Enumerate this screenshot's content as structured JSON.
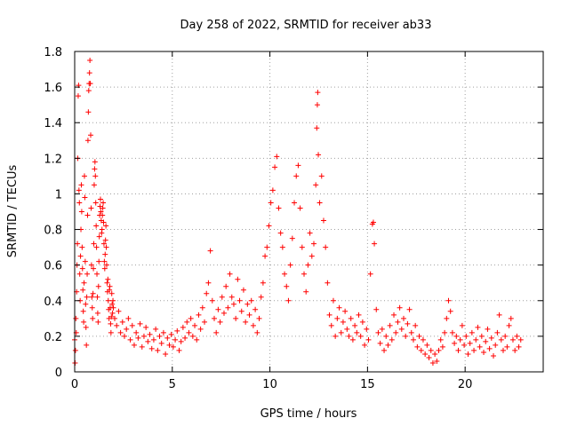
{
  "chart_data": {
    "type": "scatter",
    "title": "Day 258 of 2022, SRMTID for receiver ab33",
    "xlabel": "GPS time / hours",
    "ylabel": "SRMTID / TECUs",
    "xlim": [
      0,
      24
    ],
    "ylim": [
      0,
      1.8
    ],
    "xticks": [
      0,
      5,
      10,
      15,
      20
    ],
    "xtick_labels": [
      "0",
      "5",
      "10",
      "15",
      "20"
    ],
    "yticks": [
      0,
      0.2,
      0.4,
      0.6,
      0.8,
      1,
      1.2,
      1.4,
      1.6,
      1.8
    ],
    "ytick_labels": [
      "0",
      "0.2",
      "0.4",
      "0.6",
      "0.8",
      "1",
      "1.2",
      "1.4",
      "1.6",
      "1.8"
    ],
    "grid": true,
    "marker": "+",
    "color": "#ff0000",
    "series": [
      {
        "name": "SRMTID",
        "points": [
          [
            0.0,
            0.18
          ],
          [
            0.02,
            0.05
          ],
          [
            0.04,
            0.12
          ],
          [
            0.06,
            0.3
          ],
          [
            0.08,
            0.22
          ],
          [
            0.1,
            0.45
          ],
          [
            0.12,
            0.6
          ],
          [
            0.14,
            0.72
          ],
          [
            0.16,
            1.2
          ],
          [
            0.18,
            1.55
          ],
          [
            0.2,
            1.61
          ],
          [
            0.22,
            1.02
          ],
          [
            0.24,
            0.95
          ],
          [
            0.26,
            0.55
          ],
          [
            0.28,
            0.4
          ],
          [
            0.3,
            0.65
          ],
          [
            0.32,
            0.8
          ],
          [
            0.34,
            1.05
          ],
          [
            0.36,
            0.9
          ],
          [
            0.38,
            0.7
          ],
          [
            0.4,
            0.58
          ],
          [
            0.42,
            0.46
          ],
          [
            0.44,
            0.34
          ],
          [
            0.46,
            0.28
          ],
          [
            0.48,
            0.5
          ],
          [
            0.5,
            1.1
          ],
          [
            0.52,
            0.98
          ],
          [
            0.54,
            0.62
          ],
          [
            0.56,
            0.38
          ],
          [
            0.58,
            0.25
          ],
          [
            0.6,
            0.15
          ],
          [
            0.62,
            0.42
          ],
          [
            0.64,
            0.55
          ],
          [
            0.66,
            0.88
          ],
          [
            0.68,
            1.3
          ],
          [
            0.7,
            1.46
          ],
          [
            0.72,
            1.58
          ],
          [
            0.74,
            1.62
          ],
          [
            0.76,
            1.68
          ],
          [
            0.78,
            1.75
          ],
          [
            0.8,
            1.62
          ],
          [
            0.82,
            1.33
          ],
          [
            0.84,
            0.92
          ],
          [
            0.86,
            0.6
          ],
          [
            0.88,
            0.42
          ],
          [
            0.9,
            0.36
          ],
          [
            0.92,
            0.3
          ],
          [
            0.94,
            0.44
          ],
          [
            0.96,
            0.58
          ],
          [
            0.98,
            0.72
          ],
          [
            1.0,
            1.05
          ],
          [
            1.02,
            1.14
          ],
          [
            1.04,
            1.18
          ],
          [
            1.06,
            1.1
          ],
          [
            1.08,
            0.95
          ],
          [
            1.1,
            0.82
          ],
          [
            1.12,
            0.7
          ],
          [
            1.14,
            0.55
          ],
          [
            1.16,
            0.42
          ],
          [
            1.18,
            0.33
          ],
          [
            1.2,
            0.28
          ],
          [
            1.22,
            0.48
          ],
          [
            1.24,
            0.62
          ],
          [
            1.26,
            0.76
          ],
          [
            1.28,
            0.88
          ],
          [
            1.3,
            0.93
          ],
          [
            1.32,
            0.97
          ],
          [
            1.34,
            0.9
          ],
          [
            1.36,
            0.85
          ],
          [
            1.38,
            0.78
          ],
          [
            1.4,
            0.8
          ],
          [
            1.42,
            0.88
          ],
          [
            1.44,
            0.92
          ],
          [
            1.46,
            0.95
          ],
          [
            1.48,
            0.84
          ],
          [
            1.5,
            0.72
          ],
          [
            1.52,
            0.62
          ],
          [
            1.54,
            0.58
          ],
          [
            1.56,
            0.66
          ],
          [
            1.58,
            0.74
          ],
          [
            1.6,
            0.82
          ],
          [
            1.62,
            0.7
          ],
          [
            1.64,
            0.6
          ],
          [
            1.66,
            0.5
          ],
          [
            1.68,
            0.45
          ],
          [
            1.7,
            0.52
          ],
          [
            1.72,
            0.4
          ],
          [
            1.74,
            0.35
          ],
          [
            1.76,
            0.3
          ],
          [
            1.78,
            0.46
          ],
          [
            1.8,
            0.48
          ],
          [
            1.82,
            0.36
          ],
          [
            1.84,
            0.27
          ],
          [
            1.86,
            0.22
          ],
          [
            1.88,
            0.31
          ],
          [
            1.9,
            0.44
          ],
          [
            1.92,
            0.38
          ],
          [
            1.94,
            0.33
          ],
          [
            1.96,
            0.4
          ],
          [
            1.98,
            0.36
          ],
          [
            2.05,
            0.3
          ],
          [
            2.15,
            0.26
          ],
          [
            2.25,
            0.34
          ],
          [
            2.35,
            0.22
          ],
          [
            2.45,
            0.28
          ],
          [
            2.55,
            0.2
          ],
          [
            2.65,
            0.24
          ],
          [
            2.75,
            0.3
          ],
          [
            2.85,
            0.18
          ],
          [
            2.95,
            0.26
          ],
          [
            3.05,
            0.15
          ],
          [
            3.15,
            0.22
          ],
          [
            3.25,
            0.19
          ],
          [
            3.35,
            0.27
          ],
          [
            3.45,
            0.14
          ],
          [
            3.55,
            0.2
          ],
          [
            3.65,
            0.25
          ],
          [
            3.75,
            0.17
          ],
          [
            3.85,
            0.21
          ],
          [
            3.95,
            0.13
          ],
          [
            4.05,
            0.18
          ],
          [
            4.15,
            0.24
          ],
          [
            4.25,
            0.12
          ],
          [
            4.35,
            0.2
          ],
          [
            4.45,
            0.16
          ],
          [
            4.55,
            0.22
          ],
          [
            4.65,
            0.1
          ],
          [
            4.75,
            0.19
          ],
          [
            4.85,
            0.15
          ],
          [
            4.95,
            0.21
          ],
          [
            5.05,
            0.14
          ],
          [
            5.15,
            0.18
          ],
          [
            5.25,
            0.23
          ],
          [
            5.35,
            0.12
          ],
          [
            5.45,
            0.17
          ],
          [
            5.55,
            0.25
          ],
          [
            5.65,
            0.19
          ],
          [
            5.75,
            0.28
          ],
          [
            5.85,
            0.22
          ],
          [
            5.95,
            0.3
          ],
          [
            6.05,
            0.2
          ],
          [
            6.15,
            0.26
          ],
          [
            6.25,
            0.18
          ],
          [
            6.35,
            0.32
          ],
          [
            6.45,
            0.24
          ],
          [
            6.55,
            0.36
          ],
          [
            6.65,
            0.28
          ],
          [
            6.75,
            0.44
          ],
          [
            6.85,
            0.5
          ],
          [
            6.95,
            0.68
          ],
          [
            7.05,
            0.4
          ],
          [
            7.15,
            0.3
          ],
          [
            7.25,
            0.22
          ],
          [
            7.35,
            0.35
          ],
          [
            7.45,
            0.28
          ],
          [
            7.55,
            0.42
          ],
          [
            7.65,
            0.33
          ],
          [
            7.75,
            0.48
          ],
          [
            7.85,
            0.36
          ],
          [
            7.95,
            0.55
          ],
          [
            8.05,
            0.42
          ],
          [
            8.15,
            0.38
          ],
          [
            8.25,
            0.3
          ],
          [
            8.35,
            0.52
          ],
          [
            8.45,
            0.4
          ],
          [
            8.55,
            0.34
          ],
          [
            8.65,
            0.46
          ],
          [
            8.75,
            0.28
          ],
          [
            8.85,
            0.38
          ],
          [
            8.95,
            0.32
          ],
          [
            9.05,
            0.4
          ],
          [
            9.15,
            0.26
          ],
          [
            9.25,
            0.35
          ],
          [
            9.35,
            0.22
          ],
          [
            9.45,
            0.3
          ],
          [
            9.55,
            0.42
          ],
          [
            9.65,
            0.5
          ],
          [
            9.75,
            0.65
          ],
          [
            9.85,
            0.7
          ],
          [
            9.95,
            0.82
          ],
          [
            10.05,
            0.95
          ],
          [
            10.15,
            1.02
          ],
          [
            10.25,
            1.15
          ],
          [
            10.35,
            1.21
          ],
          [
            10.45,
            0.92
          ],
          [
            10.55,
            0.78
          ],
          [
            10.65,
            0.7
          ],
          [
            10.75,
            0.55
          ],
          [
            10.85,
            0.48
          ],
          [
            10.95,
            0.4
          ],
          [
            11.05,
            0.6
          ],
          [
            11.15,
            0.75
          ],
          [
            11.25,
            0.95
          ],
          [
            11.35,
            1.1
          ],
          [
            11.45,
            1.16
          ],
          [
            11.55,
            0.92
          ],
          [
            11.65,
            0.7
          ],
          [
            11.75,
            0.55
          ],
          [
            11.85,
            0.45
          ],
          [
            11.95,
            0.6
          ],
          [
            12.05,
            0.78
          ],
          [
            12.15,
            0.65
          ],
          [
            12.25,
            0.72
          ],
          [
            12.35,
            1.05
          ],
          [
            12.4,
            1.37
          ],
          [
            12.43,
            1.5
          ],
          [
            12.45,
            1.57
          ],
          [
            12.48,
            1.22
          ],
          [
            12.55,
            0.95
          ],
          [
            12.65,
            1.1
          ],
          [
            12.75,
            0.85
          ],
          [
            12.85,
            0.7
          ],
          [
            12.95,
            0.5
          ],
          [
            13.05,
            0.32
          ],
          [
            13.15,
            0.26
          ],
          [
            13.25,
            0.4
          ],
          [
            13.35,
            0.2
          ],
          [
            13.45,
            0.3
          ],
          [
            13.55,
            0.36
          ],
          [
            13.65,
            0.22
          ],
          [
            13.75,
            0.28
          ],
          [
            13.85,
            0.34
          ],
          [
            13.95,
            0.24
          ],
          [
            14.05,
            0.2
          ],
          [
            14.15,
            0.3
          ],
          [
            14.25,
            0.18
          ],
          [
            14.35,
            0.26
          ],
          [
            14.45,
            0.22
          ],
          [
            14.55,
            0.32
          ],
          [
            14.65,
            0.2
          ],
          [
            14.75,
            0.28
          ],
          [
            14.85,
            0.15
          ],
          [
            14.95,
            0.24
          ],
          [
            15.05,
            0.18
          ],
          [
            15.15,
            0.55
          ],
          [
            15.25,
            0.83
          ],
          [
            15.3,
            0.84
          ],
          [
            15.35,
            0.72
          ],
          [
            15.45,
            0.35
          ],
          [
            15.55,
            0.22
          ],
          [
            15.65,
            0.16
          ],
          [
            15.75,
            0.24
          ],
          [
            15.85,
            0.12
          ],
          [
            15.95,
            0.2
          ],
          [
            16.05,
            0.15
          ],
          [
            16.15,
            0.26
          ],
          [
            16.25,
            0.18
          ],
          [
            16.35,
            0.32
          ],
          [
            16.45,
            0.22
          ],
          [
            16.55,
            0.28
          ],
          [
            16.65,
            0.36
          ],
          [
            16.75,
            0.24
          ],
          [
            16.85,
            0.3
          ],
          [
            16.95,
            0.2
          ],
          [
            17.05,
            0.27
          ],
          [
            17.15,
            0.35
          ],
          [
            17.25,
            0.22
          ],
          [
            17.35,
            0.18
          ],
          [
            17.45,
            0.26
          ],
          [
            17.55,
            0.14
          ],
          [
            17.65,
            0.2
          ],
          [
            17.75,
            0.12
          ],
          [
            17.85,
            0.18
          ],
          [
            17.95,
            0.1
          ],
          [
            18.05,
            0.15
          ],
          [
            18.15,
            0.08
          ],
          [
            18.25,
            0.12
          ],
          [
            18.35,
            0.05
          ],
          [
            18.45,
            0.1
          ],
          [
            18.55,
            0.06
          ],
          [
            18.65,
            0.12
          ],
          [
            18.75,
            0.18
          ],
          [
            18.85,
            0.14
          ],
          [
            18.95,
            0.22
          ],
          [
            19.05,
            0.3
          ],
          [
            19.15,
            0.4
          ],
          [
            19.25,
            0.34
          ],
          [
            19.35,
            0.22
          ],
          [
            19.45,
            0.16
          ],
          [
            19.55,
            0.2
          ],
          [
            19.65,
            0.12
          ],
          [
            19.75,
            0.18
          ],
          [
            19.85,
            0.26
          ],
          [
            19.95,
            0.15
          ],
          [
            20.05,
            0.2
          ],
          [
            20.15,
            0.1
          ],
          [
            20.25,
            0.16
          ],
          [
            20.35,
            0.22
          ],
          [
            20.45,
            0.12
          ],
          [
            20.55,
            0.18
          ],
          [
            20.65,
            0.25
          ],
          [
            20.75,
            0.14
          ],
          [
            20.85,
            0.2
          ],
          [
            20.95,
            0.11
          ],
          [
            21.05,
            0.17
          ],
          [
            21.15,
            0.24
          ],
          [
            21.25,
            0.13
          ],
          [
            21.35,
            0.19
          ],
          [
            21.45,
            0.09
          ],
          [
            21.55,
            0.15
          ],
          [
            21.65,
            0.22
          ],
          [
            21.75,
            0.32
          ],
          [
            21.85,
            0.18
          ],
          [
            21.95,
            0.12
          ],
          [
            22.05,
            0.2
          ],
          [
            22.15,
            0.14
          ],
          [
            22.25,
            0.26
          ],
          [
            22.35,
            0.3
          ],
          [
            22.45,
            0.18
          ],
          [
            22.55,
            0.12
          ],
          [
            22.65,
            0.2
          ],
          [
            22.75,
            0.14
          ],
          [
            22.85,
            0.18
          ]
        ]
      }
    ]
  }
}
